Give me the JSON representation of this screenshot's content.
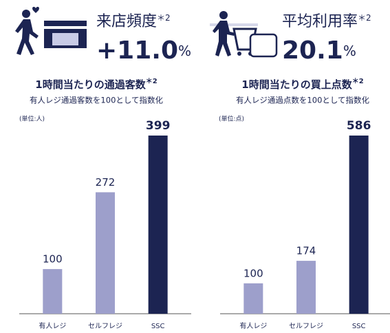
{
  "chart_data": [
    {
      "type": "bar",
      "stat_label": "来店頻度",
      "stat_note": "＊2",
      "stat_value": "+11.0",
      "stat_unit": "%",
      "title": "1時間当たりの通過客数",
      "title_note": "＊2",
      "subtitle": "有人レジ通過客数を100として指数化",
      "unit_label": "(単位:人)",
      "categories": [
        "有人レジ",
        "セルフレジ",
        "SSC"
      ],
      "values": [
        100,
        272,
        399
      ],
      "colors": [
        "#9d9fcb",
        "#9d9fcb",
        "#1c2452"
      ]
    },
    {
      "type": "bar",
      "stat_label": "平均利用率",
      "stat_note": "＊2",
      "stat_value": "20.1",
      "stat_unit": "%",
      "title": "1時間当たりの買上点数",
      "title_note": "＊2",
      "subtitle": "有人レジ通過点数を100として指数化",
      "unit_label": "(単位:点)",
      "categories": [
        "有人レジ",
        "セルフレジ",
        "SSC"
      ],
      "values": [
        100,
        174,
        586
      ],
      "colors": [
        "#9d9fcb",
        "#9d9fcb",
        "#1c2452"
      ]
    }
  ]
}
